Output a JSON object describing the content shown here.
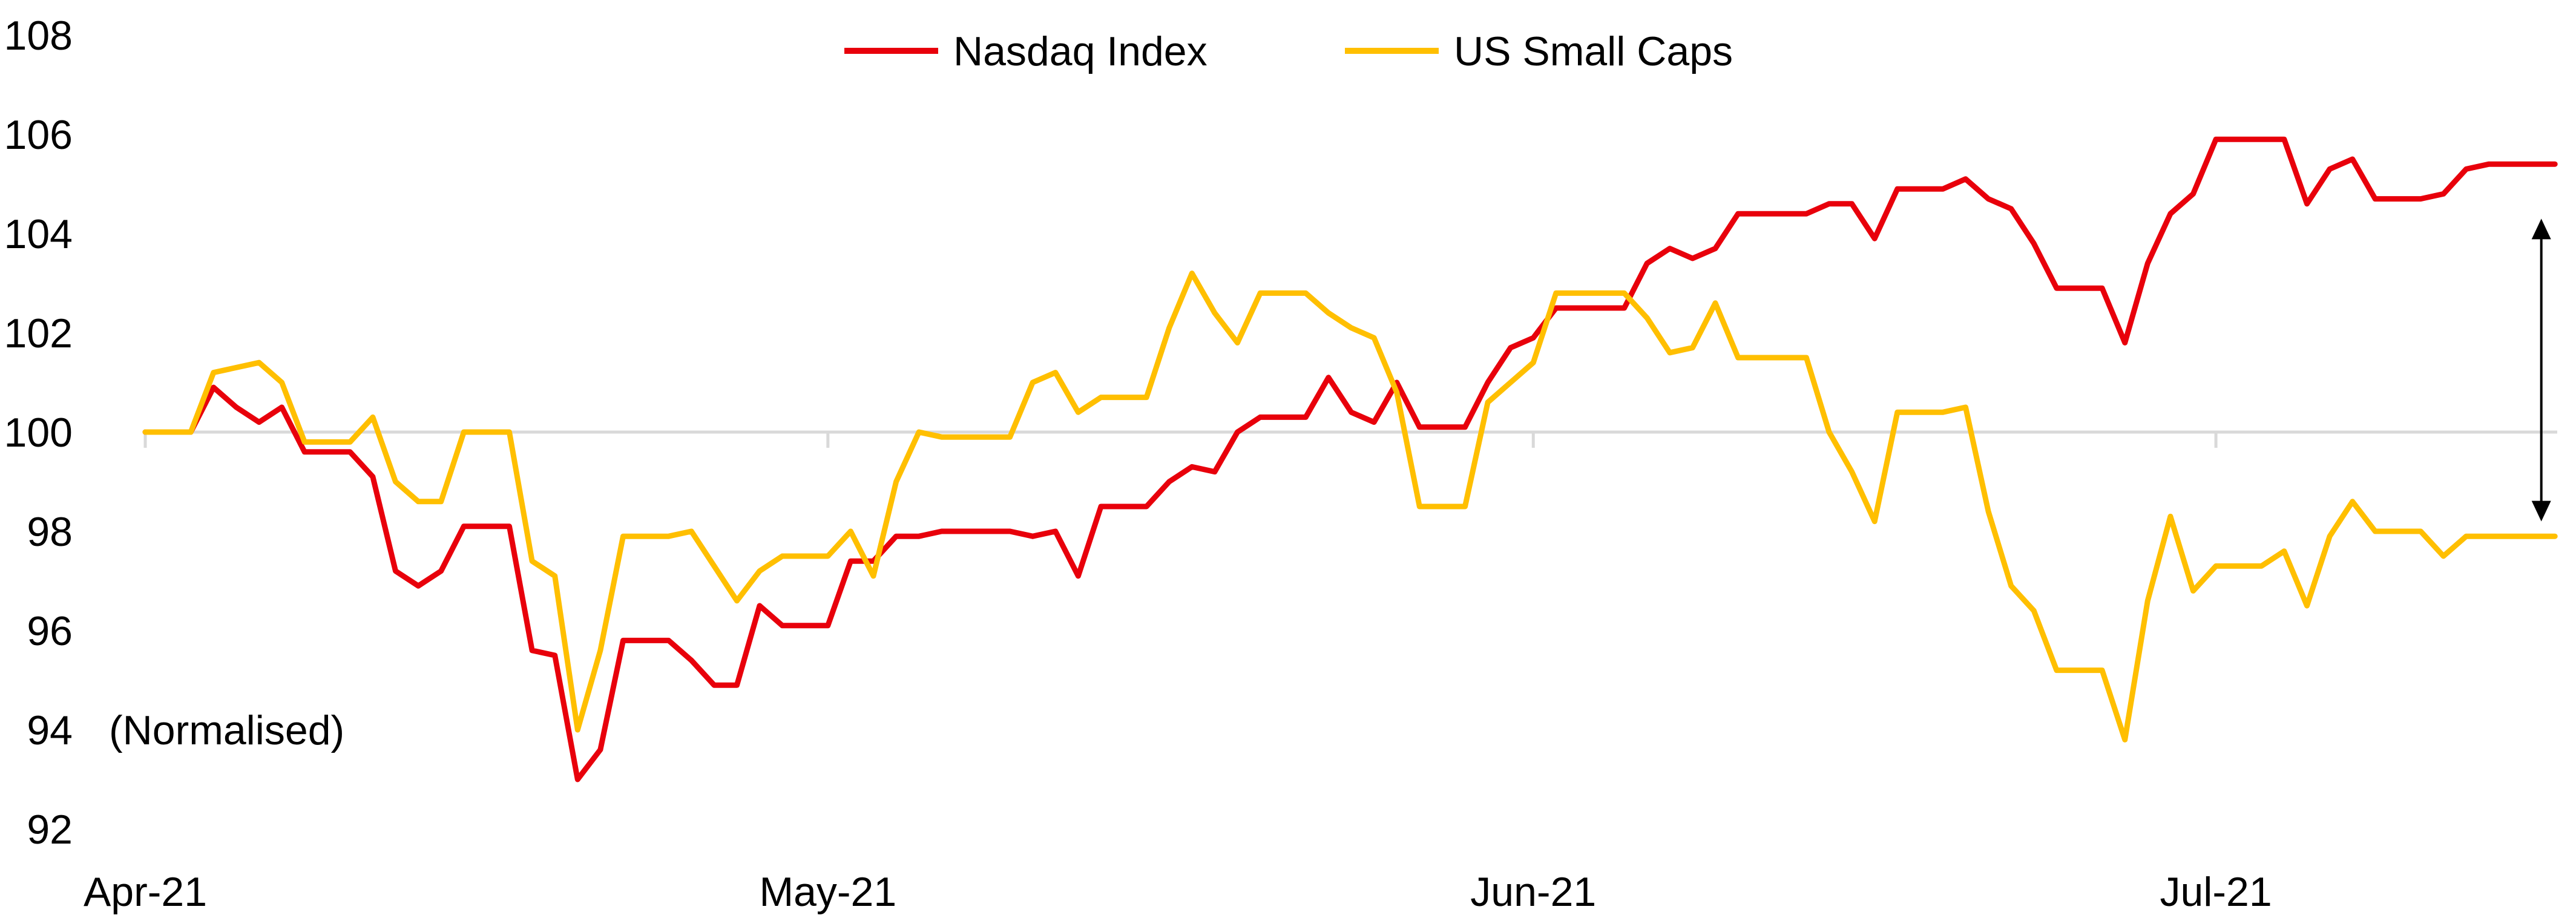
{
  "chart_data": {
    "type": "line",
    "title": "",
    "xlabel": "",
    "ylabel": "",
    "ylim": [
      92,
      108
    ],
    "yticks": [
      92,
      94,
      96,
      98,
      100,
      102,
      104,
      106,
      108
    ],
    "grid": false,
    "baseline": 100,
    "legend_position": "top-center",
    "annotation": "(Normalised)",
    "x_range": [
      0,
      106
    ],
    "x_ticks": [
      {
        "label": "Apr-21",
        "x": 0
      },
      {
        "label": "May-21",
        "x": 30
      },
      {
        "label": "Jun-21",
        "x": 61
      },
      {
        "label": "Jul-21",
        "x": 91
      }
    ],
    "arrow_annotation": {
      "x": 105.3,
      "from": 104.3,
      "to": 98.2
    },
    "series": [
      {
        "name": "Nasdaq Index",
        "color": "#e8000b",
        "x": [
          0,
          1,
          2,
          3,
          4,
          5,
          6,
          7,
          8,
          9,
          10,
          11,
          12,
          13,
          14,
          15,
          16,
          17,
          18,
          19,
          20,
          21,
          22,
          23,
          24,
          25,
          26,
          27,
          28,
          29,
          30,
          31,
          32,
          33,
          34,
          35,
          36,
          37,
          38,
          39,
          40,
          41,
          42,
          43,
          44,
          45,
          46,
          47,
          48,
          49,
          50,
          51,
          52,
          53,
          54,
          55,
          56,
          57,
          58,
          59,
          60,
          61,
          62,
          63,
          64,
          65,
          66,
          67,
          68,
          69,
          70,
          71,
          72,
          73,
          74,
          75,
          76,
          77,
          78,
          79,
          80,
          81,
          82,
          83,
          84,
          85,
          86,
          87,
          88,
          89,
          90,
          91,
          92,
          93,
          94,
          95,
          96,
          97,
          98,
          99,
          100,
          101,
          102,
          103,
          104,
          105
        ],
        "values": [
          100.0,
          100.0,
          100.0,
          100.9,
          100.5,
          100.2,
          100.5,
          99.6,
          99.6,
          99.6,
          99.1,
          97.2,
          96.9,
          97.2,
          98.1,
          98.1,
          98.1,
          95.6,
          95.5,
          93.0,
          93.6,
          95.8,
          95.8,
          95.8,
          95.4,
          94.9,
          94.9,
          96.5,
          96.1,
          96.1,
          96.1,
          97.4,
          97.4,
          97.9,
          97.9,
          98.0,
          98.0,
          98.0,
          98.0,
          97.9,
          98.0,
          97.1,
          98.5,
          98.5,
          98.5,
          99.0,
          99.3,
          99.2,
          100.0,
          100.3,
          100.3,
          100.3,
          101.1,
          100.4,
          100.2,
          101.0,
          100.1,
          100.1,
          100.1,
          101.0,
          101.7,
          101.9,
          102.5,
          102.5,
          102.5,
          102.5,
          103.4,
          103.7,
          103.5,
          103.7,
          104.4,
          104.4,
          104.4,
          104.4,
          104.6,
          104.6,
          103.9,
          104.9,
          104.9,
          104.9,
          105.1,
          104.7,
          104.5,
          103.8,
          102.9,
          102.9,
          102.9,
          101.8,
          103.4,
          104.4,
          104.8,
          105.9,
          105.9,
          105.9,
          105.9,
          104.6,
          105.3,
          105.5,
          104.7,
          104.7,
          104.7,
          104.8,
          105.3,
          105.4,
          105.4,
          105.4
        ],
        "values_note": "last point at x=105.9"
      },
      {
        "name": "US Small Caps",
        "color": "#ffbf00",
        "x": [
          0,
          1,
          2,
          3,
          4,
          5,
          6,
          7,
          8,
          9,
          10,
          11,
          12,
          13,
          14,
          15,
          16,
          17,
          18,
          19,
          20,
          21,
          22,
          23,
          24,
          25,
          26,
          27,
          28,
          29,
          30,
          31,
          32,
          33,
          34,
          35,
          36,
          37,
          38,
          39,
          40,
          41,
          42,
          43,
          44,
          45,
          46,
          47,
          48,
          49,
          50,
          51,
          52,
          53,
          54,
          55,
          56,
          57,
          58,
          59,
          60,
          61,
          62,
          63,
          64,
          65,
          66,
          67,
          68,
          69,
          70,
          71,
          72,
          73,
          74,
          75,
          76,
          77,
          78,
          79,
          80,
          81,
          82,
          83,
          84,
          85,
          86,
          87,
          88,
          89,
          90,
          91,
          92,
          93,
          94,
          95,
          96,
          97,
          98,
          99,
          100,
          101,
          102,
          103,
          104,
          105
        ],
        "values": [
          100.0,
          100.0,
          100.0,
          101.2,
          101.3,
          101.4,
          101.0,
          99.8,
          99.8,
          99.8,
          100.3,
          99.0,
          98.6,
          98.6,
          100.0,
          100.0,
          100.0,
          97.4,
          97.1,
          94.0,
          95.6,
          97.9,
          97.9,
          97.9,
          98.0,
          97.3,
          96.6,
          97.2,
          97.5,
          97.5,
          97.5,
          98.0,
          97.1,
          99.0,
          100.0,
          99.9,
          99.9,
          99.9,
          99.9,
          101.0,
          101.2,
          100.4,
          100.7,
          100.7,
          100.7,
          102.1,
          103.2,
          102.4,
          101.8,
          102.8,
          102.8,
          102.8,
          102.4,
          102.1,
          101.9,
          100.8,
          98.5,
          98.5,
          98.5,
          100.6,
          101.0,
          101.4,
          102.8,
          102.8,
          102.8,
          102.8,
          102.3,
          101.6,
          101.7,
          102.6,
          101.5,
          101.5,
          101.5,
          101.5,
          100.0,
          99.2,
          98.2,
          100.4,
          100.4,
          100.4,
          100.5,
          98.4,
          96.9,
          96.4,
          95.2,
          95.2,
          95.2,
          93.8,
          96.6,
          98.3,
          96.8,
          97.3,
          97.3,
          97.3,
          97.6,
          96.5,
          97.9,
          98.6,
          98.0,
          98.0,
          98.0,
          97.5,
          97.9,
          97.9,
          97.9,
          97.9
        ],
        "values_note": "last point at x=105.9"
      }
    ]
  },
  "legend": {
    "items": [
      {
        "label": "Nasdaq Index",
        "color": "#e8000b"
      },
      {
        "label": "US Small Caps",
        "color": "#ffbf00"
      }
    ]
  }
}
